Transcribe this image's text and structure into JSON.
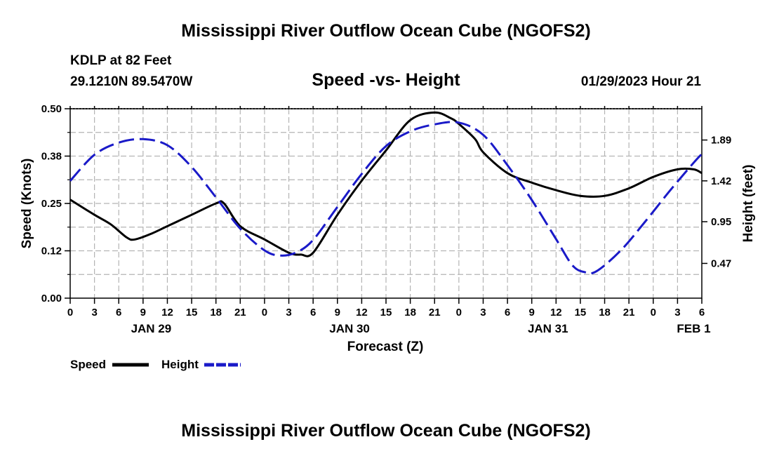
{
  "header": {
    "title": "Mississippi River Outflow Ocean Cube (NGOFS2)",
    "station": "KDLP at 82 Feet",
    "coords": "29.1210N  89.5470W",
    "subtitle": "Speed -vs- Height",
    "datetime": "01/29/2023 Hour 21",
    "footer_title": "Mississippi River Outflow Ocean Cube (NGOFS2)"
  },
  "chart_data": {
    "type": "line",
    "title": "Speed -vs- Height",
    "xlabel": "Forecast (Z)",
    "ylabel": "Speed (Knots)",
    "y2label": "Height (feet)",
    "xlim": [
      0,
      78
    ],
    "ylim": [
      0,
      0.5
    ],
    "y2lim": [
      0.07,
      2.25
    ],
    "x_tick_hours": [
      0,
      3,
      6,
      9,
      12,
      15,
      18,
      21,
      24,
      27,
      30,
      33,
      36,
      39,
      42,
      45,
      48,
      51,
      54,
      57,
      60,
      63,
      66,
      69,
      72,
      75,
      78
    ],
    "x_tick_labels": [
      "0",
      "3",
      "6",
      "9",
      "12",
      "15",
      "18",
      "21",
      "0",
      "3",
      "6",
      "9",
      "12",
      "15",
      "18",
      "21",
      "0",
      "3",
      "6",
      "9",
      "12",
      "15",
      "18",
      "21",
      "0",
      "3",
      "6"
    ],
    "y_ticks": [
      0,
      0.125,
      0.25,
      0.375,
      0.5
    ],
    "y_tick_labels": [
      "0.00",
      "0.12",
      "0.25",
      "0.38",
      "0.50"
    ],
    "y2_ticks": [
      0.47,
      0.95,
      1.42,
      1.89
    ],
    "y2_tick_labels": [
      "0.47",
      "0.95",
      "1.42",
      "1.89"
    ],
    "day_labels": [
      {
        "hour": 10,
        "label": "JAN 29"
      },
      {
        "hour": 34.5,
        "label": "JAN 30"
      },
      {
        "hour": 59,
        "label": "JAN 31"
      },
      {
        "hour": 77,
        "label": "FEB 1"
      }
    ],
    "grid": true,
    "series": [
      {
        "name": "Speed",
        "color": "#000000",
        "axis": "left",
        "x": [
          0,
          3,
          5,
          7,
          8,
          10,
          12,
          15,
          18,
          19,
          21,
          24,
          27,
          28.5,
          30,
          33,
          36,
          39,
          42,
          45,
          47,
          48,
          50,
          51,
          54,
          57,
          60,
          63,
          66,
          69,
          72,
          75,
          77,
          78
        ],
        "values": [
          0.26,
          0.22,
          0.195,
          0.16,
          0.155,
          0.17,
          0.19,
          0.22,
          0.25,
          0.25,
          0.19,
          0.155,
          0.12,
          0.115,
          0.12,
          0.22,
          0.31,
          0.39,
          0.47,
          0.49,
          0.475,
          0.46,
          0.42,
          0.385,
          0.33,
          0.305,
          0.285,
          0.27,
          0.27,
          0.29,
          0.32,
          0.34,
          0.34,
          0.33
        ]
      },
      {
        "name": "Height",
        "color": "#1a1ac8",
        "axis": "right",
        "x": [
          0,
          3,
          6,
          9,
          12,
          15,
          18,
          21,
          24,
          26,
          28,
          30,
          33,
          36,
          39,
          42,
          45,
          48,
          51,
          54,
          57,
          60,
          62,
          63.5,
          65,
          68,
          71,
          74,
          77,
          78
        ],
        "values": [
          1.42,
          1.72,
          1.86,
          1.9,
          1.83,
          1.58,
          1.23,
          0.87,
          0.62,
          0.56,
          0.6,
          0.74,
          1.12,
          1.5,
          1.82,
          1.99,
          2.07,
          2.09,
          1.95,
          1.6,
          1.2,
          0.75,
          0.45,
          0.37,
          0.38,
          0.62,
          0.95,
          1.3,
          1.63,
          1.73
        ]
      }
    ]
  },
  "legend": {
    "speed_label": "Speed",
    "height_label": "Height"
  }
}
